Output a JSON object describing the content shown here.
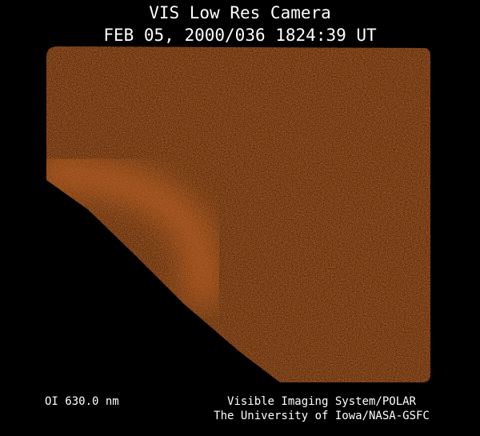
{
  "header": {
    "title": "VIS Low Res Camera",
    "timestamp": "FEB 05, 2000/036 1824:39 UT"
  },
  "footer": {
    "filter": "OI  630.0 nm",
    "instrument": "Visible Imaging System/POLAR",
    "institution": "The University of Iowa/NASA-GSFC"
  },
  "image": {
    "subject": "auroral emission image",
    "colormap_color": "#8a3a0c",
    "glow_color": "#c85a14"
  }
}
